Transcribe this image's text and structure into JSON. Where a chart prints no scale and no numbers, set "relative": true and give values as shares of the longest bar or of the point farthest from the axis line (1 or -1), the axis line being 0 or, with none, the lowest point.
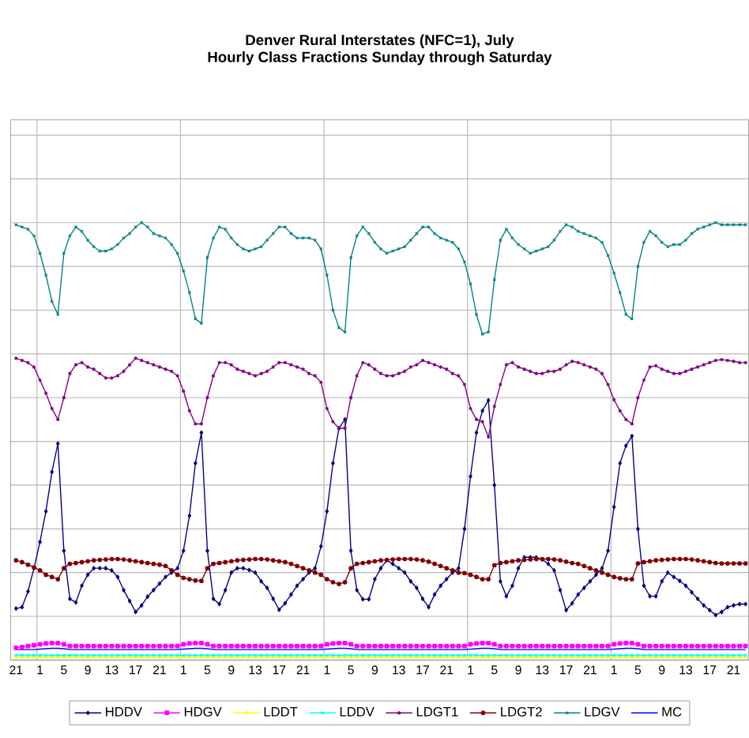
{
  "chart_data": {
    "type": "line",
    "title": "Denver Rural Interstates (NFC=1), July",
    "subtitle": "Hourly Class Fractions Sunday through Saturday",
    "relative": true,
    "grid": true,
    "legend": "bottom",
    "line_style": "solid",
    "categories": [
      "21",
      null,
      null,
      null,
      "1",
      null,
      null,
      null,
      "5",
      null,
      null,
      null,
      "9",
      null,
      null,
      null,
      "13",
      null,
      null,
      null,
      "17",
      null,
      null,
      null,
      "21",
      null,
      null,
      null,
      "1",
      null,
      null,
      null,
      "5",
      null,
      null,
      null,
      "9",
      null,
      null,
      null,
      "13",
      null,
      null,
      null,
      "17",
      null,
      null,
      null,
      "21",
      null,
      null,
      null,
      "1",
      null,
      null,
      null,
      "5",
      null,
      null,
      null,
      "9",
      null,
      null,
      null,
      "13",
      null,
      null,
      null,
      "17",
      null,
      null,
      null,
      "21",
      null,
      null,
      null,
      "1",
      null,
      null,
      null,
      "5",
      null,
      null,
      null,
      "9",
      null,
      null,
      null,
      "13",
      null,
      null,
      null,
      "17",
      null,
      null,
      null,
      "21",
      null,
      null,
      null,
      "1",
      null,
      null,
      null,
      "5",
      null,
      null,
      null,
      "9",
      null,
      null,
      null,
      "13",
      null,
      null,
      null,
      "17",
      null,
      null,
      null,
      "21",
      null,
      null
    ],
    "series": [
      {
        "name": "HDDV",
        "color": "#000080",
        "marker": "diamond",
        "values": [
          0.118,
          0.121,
          0.157,
          0.21,
          0.27,
          0.34,
          0.43,
          0.495,
          0.25,
          0.14,
          0.132,
          0.17,
          0.195,
          0.21,
          0.21,
          0.21,
          0.205,
          0.19,
          0.16,
          0.135,
          0.11,
          0.125,
          0.145,
          0.16,
          0.175,
          0.19,
          0.2,
          0.21,
          0.25,
          0.33,
          0.45,
          0.52,
          0.25,
          0.14,
          0.128,
          0.16,
          0.2,
          0.21,
          0.21,
          0.206,
          0.2,
          0.18,
          0.165,
          0.14,
          0.115,
          0.13,
          0.15,
          0.17,
          0.185,
          0.2,
          0.21,
          0.26,
          0.34,
          0.45,
          0.53,
          0.55,
          0.25,
          0.16,
          0.139,
          0.139,
          0.185,
          0.21,
          0.228,
          0.22,
          0.21,
          0.2,
          0.18,
          0.165,
          0.14,
          0.121,
          0.15,
          0.17,
          0.185,
          0.2,
          0.21,
          0.3,
          0.42,
          0.52,
          0.57,
          0.594,
          0.4,
          0.18,
          0.146,
          0.17,
          0.21,
          0.235,
          0.235,
          0.235,
          0.23,
          0.22,
          0.205,
          0.16,
          0.114,
          0.13,
          0.15,
          0.165,
          0.18,
          0.195,
          0.21,
          0.25,
          0.35,
          0.45,
          0.49,
          0.512,
          0.3,
          0.17,
          0.146,
          0.146,
          0.18,
          0.2,
          0.19,
          0.181,
          0.17,
          0.155,
          0.14,
          0.125,
          0.114,
          0.103,
          0.11,
          0.121,
          0.125,
          0.128,
          0.128
        ]
      },
      {
        "name": "HDGV",
        "color": "#ff00ff",
        "marker": "square",
        "values": [
          0.028,
          0.03,
          0.032,
          0.034,
          0.036,
          0.038,
          0.039,
          0.039,
          0.036,
          0.032,
          0.032,
          0.032,
          0.032,
          0.032,
          0.032,
          0.032,
          0.032,
          0.032,
          0.032,
          0.032,
          0.032,
          0.032,
          0.032,
          0.032,
          0.032,
          0.032,
          0.032,
          0.032,
          0.036,
          0.038,
          0.039,
          0.039,
          0.036,
          0.032,
          0.032,
          0.032,
          0.032,
          0.032,
          0.032,
          0.032,
          0.032,
          0.032,
          0.032,
          0.032,
          0.032,
          0.032,
          0.032,
          0.032,
          0.032,
          0.032,
          0.032,
          0.032,
          0.036,
          0.038,
          0.039,
          0.039,
          0.036,
          0.032,
          0.032,
          0.032,
          0.032,
          0.032,
          0.032,
          0.032,
          0.032,
          0.032,
          0.032,
          0.032,
          0.032,
          0.032,
          0.032,
          0.032,
          0.032,
          0.032,
          0.032,
          0.032,
          0.036,
          0.038,
          0.039,
          0.039,
          0.036,
          0.032,
          0.032,
          0.032,
          0.032,
          0.032,
          0.032,
          0.032,
          0.032,
          0.032,
          0.032,
          0.032,
          0.032,
          0.032,
          0.032,
          0.032,
          0.032,
          0.032,
          0.032,
          0.032,
          0.036,
          0.038,
          0.039,
          0.039,
          0.036,
          0.032,
          0.032,
          0.032,
          0.032,
          0.032,
          0.032,
          0.032,
          0.032,
          0.032,
          0.032,
          0.032,
          0.032,
          0.032,
          0.032,
          0.032,
          0.032,
          0.032,
          0.032
        ]
      },
      {
        "name": "LDDT",
        "color": "#ffff00",
        "marker": "triangle",
        "values": [
          0.007,
          0.007,
          0.007,
          0.007,
          0.007,
          0.007,
          0.007,
          0.007,
          0.007,
          0.007,
          0.007,
          0.007,
          0.007,
          0.007,
          0.007,
          0.007,
          0.007,
          0.007,
          0.007,
          0.007,
          0.007,
          0.007,
          0.007,
          0.007,
          0.007,
          0.007,
          0.007,
          0.007,
          0.007,
          0.007,
          0.007,
          0.007,
          0.007,
          0.007,
          0.007,
          0.007,
          0.007,
          0.007,
          0.007,
          0.007,
          0.007,
          0.007,
          0.007,
          0.007,
          0.007,
          0.007,
          0.007,
          0.007,
          0.007,
          0.007,
          0.007,
          0.007,
          0.007,
          0.007,
          0.007,
          0.007,
          0.007,
          0.007,
          0.007,
          0.007,
          0.007,
          0.007,
          0.007,
          0.007,
          0.007,
          0.007,
          0.007,
          0.007,
          0.007,
          0.007,
          0.007,
          0.007,
          0.007,
          0.007,
          0.007,
          0.007,
          0.007,
          0.007,
          0.007,
          0.007,
          0.007,
          0.007,
          0.007,
          0.007,
          0.007,
          0.007,
          0.007,
          0.007,
          0.007,
          0.007,
          0.007,
          0.007,
          0.007,
          0.007,
          0.007,
          0.007,
          0.007,
          0.007,
          0.007,
          0.007,
          0.007,
          0.007,
          0.007,
          0.007,
          0.007,
          0.007,
          0.007,
          0.007,
          0.007,
          0.007,
          0.007,
          0.007,
          0.007,
          0.007,
          0.007,
          0.007,
          0.007,
          0.007,
          0.007,
          0.007,
          0.007,
          0.007,
          0.007
        ]
      },
      {
        "name": "LDDV",
        "color": "#00ffff",
        "marker": "cross",
        "values": [
          0.011,
          0.011,
          0.011,
          0.011,
          0.011,
          0.011,
          0.011,
          0.011,
          0.011,
          0.011,
          0.011,
          0.011,
          0.011,
          0.011,
          0.011,
          0.011,
          0.011,
          0.011,
          0.011,
          0.011,
          0.011,
          0.011,
          0.011,
          0.011,
          0.011,
          0.011,
          0.011,
          0.011,
          0.011,
          0.011,
          0.011,
          0.011,
          0.011,
          0.011,
          0.011,
          0.011,
          0.011,
          0.011,
          0.011,
          0.011,
          0.011,
          0.011,
          0.011,
          0.011,
          0.011,
          0.011,
          0.011,
          0.011,
          0.011,
          0.011,
          0.011,
          0.011,
          0.011,
          0.011,
          0.011,
          0.011,
          0.011,
          0.011,
          0.011,
          0.011,
          0.011,
          0.011,
          0.011,
          0.011,
          0.011,
          0.011,
          0.011,
          0.011,
          0.011,
          0.011,
          0.011,
          0.011,
          0.011,
          0.011,
          0.011,
          0.011,
          0.011,
          0.011,
          0.011,
          0.011,
          0.011,
          0.011,
          0.011,
          0.011,
          0.011,
          0.011,
          0.011,
          0.011,
          0.011,
          0.011,
          0.011,
          0.011,
          0.011,
          0.011,
          0.011,
          0.011,
          0.011,
          0.011,
          0.011,
          0.011,
          0.011,
          0.011,
          0.011,
          0.011,
          0.011,
          0.011,
          0.011,
          0.011,
          0.011,
          0.011,
          0.011,
          0.011,
          0.011,
          0.011,
          0.011,
          0.011,
          0.011,
          0.011,
          0.011,
          0.011,
          0.011,
          0.011,
          0.011
        ]
      },
      {
        "name": "LDGT1",
        "color": "#800080",
        "marker": "cross",
        "values": [
          0.69,
          0.685,
          0.68,
          0.67,
          0.64,
          0.61,
          0.575,
          0.55,
          0.6,
          0.655,
          0.675,
          0.68,
          0.67,
          0.665,
          0.655,
          0.645,
          0.645,
          0.65,
          0.66,
          0.675,
          0.69,
          0.685,
          0.68,
          0.675,
          0.67,
          0.665,
          0.66,
          0.65,
          0.615,
          0.57,
          0.54,
          0.54,
          0.6,
          0.65,
          0.68,
          0.68,
          0.675,
          0.665,
          0.66,
          0.655,
          0.65,
          0.655,
          0.66,
          0.67,
          0.68,
          0.68,
          0.675,
          0.67,
          0.665,
          0.655,
          0.65,
          0.635,
          0.575,
          0.545,
          0.53,
          0.53,
          0.6,
          0.65,
          0.68,
          0.675,
          0.665,
          0.655,
          0.65,
          0.65,
          0.655,
          0.66,
          0.67,
          0.675,
          0.685,
          0.68,
          0.675,
          0.67,
          0.665,
          0.655,
          0.65,
          0.63,
          0.575,
          0.55,
          0.545,
          0.51,
          0.58,
          0.63,
          0.675,
          0.68,
          0.67,
          0.665,
          0.66,
          0.655,
          0.655,
          0.66,
          0.66,
          0.665,
          0.675,
          0.683,
          0.68,
          0.675,
          0.67,
          0.665,
          0.655,
          0.63,
          0.595,
          0.57,
          0.55,
          0.54,
          0.6,
          0.64,
          0.67,
          0.673,
          0.665,
          0.66,
          0.655,
          0.655,
          0.66,
          0.665,
          0.67,
          0.675,
          0.68,
          0.685,
          0.687,
          0.685,
          0.683,
          0.68,
          0.68
        ]
      },
      {
        "name": "LDGT2",
        "color": "#800000",
        "marker": "circle",
        "values": [
          0.228,
          0.224,
          0.218,
          0.212,
          0.205,
          0.195,
          0.19,
          0.185,
          0.21,
          0.22,
          0.222,
          0.224,
          0.226,
          0.228,
          0.229,
          0.23,
          0.231,
          0.231,
          0.23,
          0.228,
          0.226,
          0.224,
          0.222,
          0.22,
          0.218,
          0.215,
          0.205,
          0.195,
          0.188,
          0.185,
          0.182,
          0.181,
          0.21,
          0.22,
          0.222,
          0.224,
          0.226,
          0.228,
          0.229,
          0.23,
          0.231,
          0.231,
          0.23,
          0.228,
          0.226,
          0.224,
          0.22,
          0.215,
          0.21,
          0.205,
          0.2,
          0.195,
          0.185,
          0.178,
          0.174,
          0.178,
          0.21,
          0.22,
          0.222,
          0.224,
          0.226,
          0.228,
          0.229,
          0.23,
          0.231,
          0.231,
          0.231,
          0.23,
          0.228,
          0.225,
          0.22,
          0.215,
          0.21,
          0.205,
          0.2,
          0.199,
          0.195,
          0.19,
          0.185,
          0.185,
          0.217,
          0.222,
          0.224,
          0.226,
          0.228,
          0.229,
          0.23,
          0.231,
          0.231,
          0.231,
          0.23,
          0.228,
          0.225,
          0.222,
          0.22,
          0.215,
          0.21,
          0.205,
          0.2,
          0.195,
          0.19,
          0.187,
          0.185,
          0.185,
          0.221,
          0.224,
          0.226,
          0.228,
          0.229,
          0.23,
          0.231,
          0.231,
          0.231,
          0.23,
          0.228,
          0.226,
          0.224,
          0.222,
          0.221,
          0.221,
          0.221,
          0.221,
          0.221
        ]
      },
      {
        "name": "LDGV",
        "color": "#008080",
        "marker": "cross",
        "values": [
          0.995,
          0.99,
          0.985,
          0.97,
          0.93,
          0.88,
          0.82,
          0.79,
          0.93,
          0.97,
          0.99,
          0.98,
          0.96,
          0.945,
          0.935,
          0.935,
          0.94,
          0.95,
          0.965,
          0.975,
          0.99,
          1.0,
          0.99,
          0.975,
          0.97,
          0.965,
          0.95,
          0.93,
          0.89,
          0.84,
          0.78,
          0.77,
          0.92,
          0.965,
          0.99,
          0.985,
          0.965,
          0.95,
          0.94,
          0.935,
          0.94,
          0.945,
          0.96,
          0.975,
          0.99,
          0.99,
          0.975,
          0.965,
          0.965,
          0.965,
          0.96,
          0.94,
          0.88,
          0.8,
          0.76,
          0.75,
          0.92,
          0.97,
          0.99,
          0.975,
          0.955,
          0.94,
          0.93,
          0.935,
          0.94,
          0.945,
          0.96,
          0.975,
          0.99,
          0.99,
          0.975,
          0.965,
          0.96,
          0.955,
          0.94,
          0.91,
          0.86,
          0.79,
          0.745,
          0.75,
          0.87,
          0.96,
          0.985,
          0.965,
          0.95,
          0.94,
          0.93,
          0.935,
          0.94,
          0.945,
          0.96,
          0.98,
          0.995,
          0.99,
          0.98,
          0.975,
          0.97,
          0.965,
          0.955,
          0.925,
          0.885,
          0.84,
          0.79,
          0.78,
          0.9,
          0.955,
          0.98,
          0.97,
          0.955,
          0.945,
          0.95,
          0.95,
          0.96,
          0.975,
          0.985,
          0.99,
          0.995,
          1.0,
          0.995,
          0.995,
          0.995,
          0.995,
          0.995
        ]
      },
      {
        "name": "MC",
        "color": "#0000ff",
        "marker": "none",
        "values": [
          0.024,
          0.024,
          0.024,
          0.024,
          0.025,
          0.026,
          0.027,
          0.027,
          0.026,
          0.024,
          0.024,
          0.024,
          0.024,
          0.024,
          0.024,
          0.024,
          0.024,
          0.024,
          0.024,
          0.024,
          0.024,
          0.024,
          0.024,
          0.024,
          0.024,
          0.024,
          0.024,
          0.024,
          0.025,
          0.026,
          0.027,
          0.027,
          0.026,
          0.024,
          0.024,
          0.024,
          0.024,
          0.024,
          0.024,
          0.024,
          0.024,
          0.024,
          0.024,
          0.024,
          0.024,
          0.024,
          0.024,
          0.024,
          0.024,
          0.024,
          0.024,
          0.024,
          0.025,
          0.026,
          0.027,
          0.027,
          0.026,
          0.024,
          0.024,
          0.024,
          0.024,
          0.024,
          0.024,
          0.024,
          0.024,
          0.024,
          0.024,
          0.024,
          0.024,
          0.024,
          0.024,
          0.024,
          0.024,
          0.024,
          0.024,
          0.024,
          0.025,
          0.026,
          0.027,
          0.027,
          0.026,
          0.024,
          0.024,
          0.024,
          0.024,
          0.024,
          0.024,
          0.024,
          0.024,
          0.024,
          0.024,
          0.024,
          0.024,
          0.024,
          0.024,
          0.024,
          0.024,
          0.024,
          0.024,
          0.024,
          0.025,
          0.026,
          0.027,
          0.027,
          0.026,
          0.024,
          0.024,
          0.024,
          0.024,
          0.024,
          0.024,
          0.024,
          0.024,
          0.024,
          0.024,
          0.024,
          0.024,
          0.024,
          0.024,
          0.024,
          0.024,
          0.024,
          0.024
        ]
      }
    ]
  }
}
